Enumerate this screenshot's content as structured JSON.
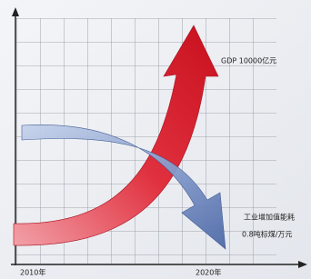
{
  "labels": {
    "gdp": "GDP 10000亿元",
    "energy_title": "工业增加值能耗",
    "energy_value": "0.8吨标煤/万元",
    "start_year": "2010年",
    "end_year": "2020年"
  }
}
